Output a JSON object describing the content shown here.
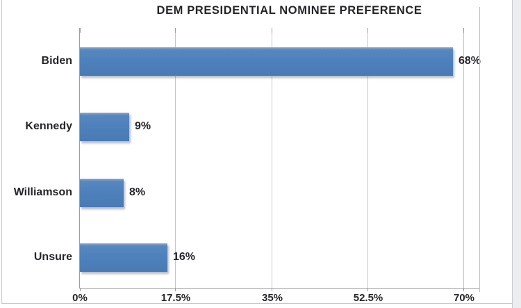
{
  "chart_data": {
    "type": "bar",
    "orientation": "horizontal",
    "title": "DEM PRESIDENTIAL NOMINEE PREFERENCE",
    "categories": [
      "Biden",
      "Kennedy",
      "Williamson",
      "Unsure"
    ],
    "values": [
      68,
      9,
      8,
      16
    ],
    "value_labels": [
      "68%",
      "9%",
      "8%",
      "16%"
    ],
    "x_tick_labels": [
      "0%",
      "17.5%",
      "35%",
      "52.5%",
      "70%"
    ],
    "x_tick_values": [
      0,
      17.5,
      35,
      52.5,
      70
    ],
    "xlim": [
      0,
      70
    ],
    "grid": true,
    "legend": "none",
    "colors": {
      "bar_fill": "#4d80bc",
      "bar_highlight": "#7ba0cc",
      "axis_line": "#9d9da2",
      "gridline": "#c6c6ca",
      "text": "#26262a",
      "card_border": "#c9c9cd",
      "page_gutter": "#ecedef"
    }
  }
}
